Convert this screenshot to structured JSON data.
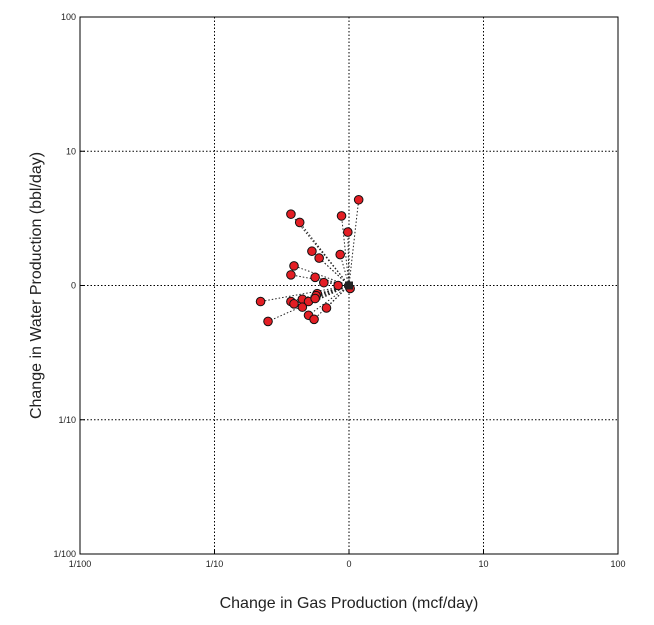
{
  "chart_data": {
    "type": "scatter",
    "title": "",
    "xlabel": "Change in Gas Production (mcf/day)",
    "ylabel": "Change in Water Production (bbl/day)",
    "xscale": "log-ratio",
    "yscale": "log-ratio",
    "xlim": [
      0.01,
      100
    ],
    "ylim": [
      0.01,
      100
    ],
    "x_ticks": [
      {
        "value": 0.01,
        "label": "1/100"
      },
      {
        "value": 0.1,
        "label": "1/10"
      },
      {
        "value": 1,
        "label": "0"
      },
      {
        "value": 10,
        "label": "10"
      },
      {
        "value": 100,
        "label": "100"
      }
    ],
    "y_ticks": [
      {
        "value": 0.01,
        "label": "1/100"
      },
      {
        "value": 0.1,
        "label": "1/10"
      },
      {
        "value": 1,
        "label": "0"
      },
      {
        "value": 10,
        "label": "10"
      },
      {
        "value": 100,
        "label": "100"
      }
    ],
    "grid": true,
    "grid_style": "dotted",
    "origin": {
      "x": 1,
      "y": 1
    },
    "connectors": "dotted lines from origin to each point",
    "marker_color": "#e31e24",
    "marker_edge_color": "#111111",
    "origin_marker_color": "#222222",
    "points": [
      {
        "x": 0.88,
        "y": 3.3
      },
      {
        "x": 1.18,
        "y": 4.35
      },
      {
        "x": 0.98,
        "y": 2.5
      },
      {
        "x": 0.37,
        "y": 3.4
      },
      {
        "x": 0.43,
        "y": 2.95
      },
      {
        "x": 0.53,
        "y": 1.8
      },
      {
        "x": 0.6,
        "y": 1.6
      },
      {
        "x": 0.86,
        "y": 1.7
      },
      {
        "x": 0.39,
        "y": 1.4
      },
      {
        "x": 0.37,
        "y": 1.2
      },
      {
        "x": 0.56,
        "y": 1.15
      },
      {
        "x": 0.65,
        "y": 1.05
      },
      {
        "x": 0.83,
        "y": 1.0
      },
      {
        "x": 1.02,
        "y": 0.95
      },
      {
        "x": 0.58,
        "y": 0.87
      },
      {
        "x": 0.57,
        "y": 0.84
      },
      {
        "x": 0.22,
        "y": 0.76
      },
      {
        "x": 0.37,
        "y": 0.76
      },
      {
        "x": 0.39,
        "y": 0.73
      },
      {
        "x": 0.45,
        "y": 0.79
      },
      {
        "x": 0.5,
        "y": 0.76
      },
      {
        "x": 0.56,
        "y": 0.8
      },
      {
        "x": 0.45,
        "y": 0.69
      },
      {
        "x": 0.68,
        "y": 0.68
      },
      {
        "x": 0.5,
        "y": 0.6
      },
      {
        "x": 0.55,
        "y": 0.56
      },
      {
        "x": 0.25,
        "y": 0.54
      }
    ]
  }
}
